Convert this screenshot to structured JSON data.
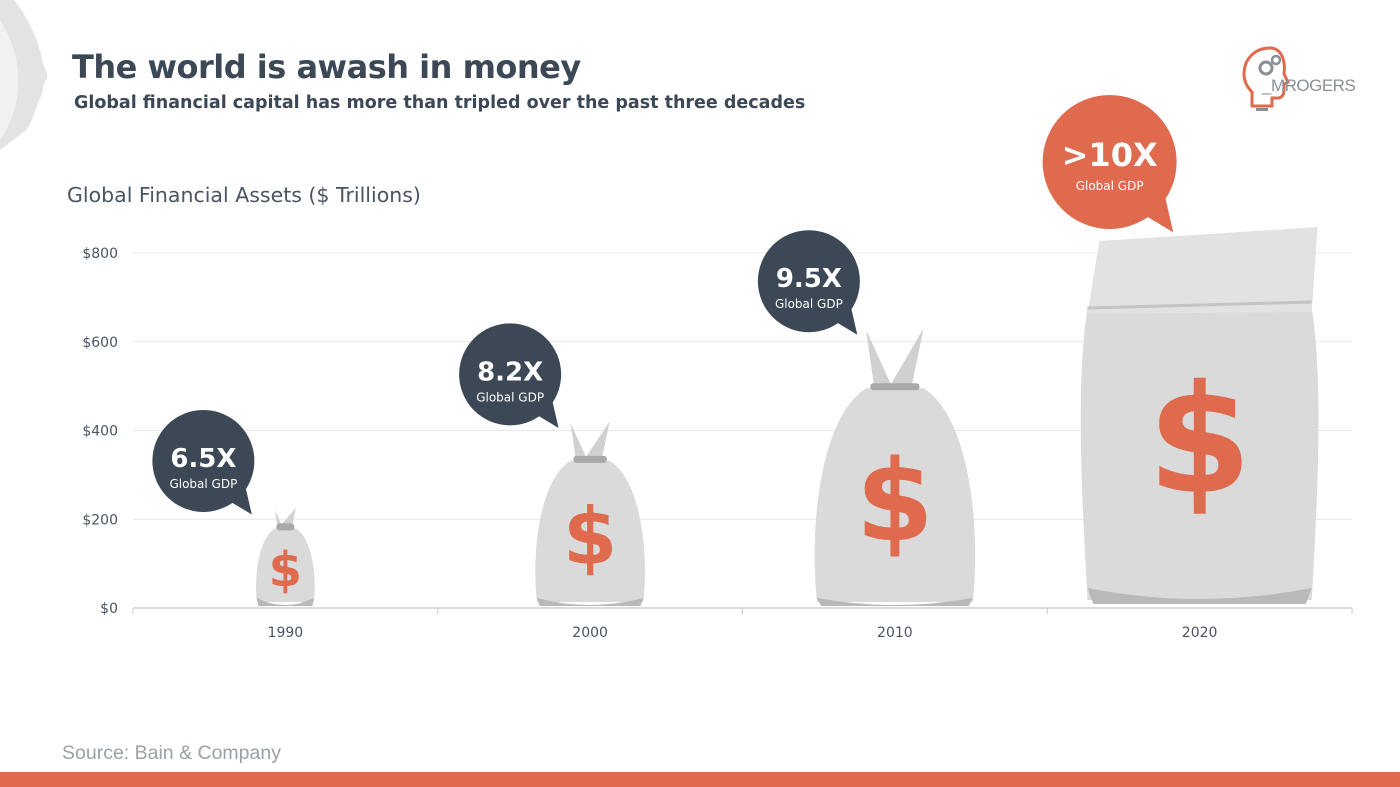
{
  "header": {
    "title": "The world is awash in money",
    "subtitle": "Global financial capital has more than tripled over the past three decades"
  },
  "logo": {
    "text": "_MROGERS",
    "icon": "head-gears-lightbulb-icon"
  },
  "source": "Source: Bain & Company",
  "colors": {
    "accent": "#e06a4e",
    "dark_bubble": "#3d4856",
    "bag": "#dadada",
    "bag_shadow": "#b9b9b9",
    "text": "#3d4856",
    "grid": "#e8e8e8"
  },
  "chart_data": {
    "type": "bar",
    "title": "Global Financial Assets ($ Trillions)",
    "categories": [
      "1990",
      "2000",
      "2010",
      "2020"
    ],
    "values": [
      230,
      425,
      635,
      845
    ],
    "ylim": [
      0,
      800
    ],
    "yticks": [
      0,
      200,
      400,
      600,
      800
    ],
    "ytick_labels": [
      "$0",
      "$200",
      "$400",
      "$600",
      "$800"
    ],
    "grid": true,
    "annotations": [
      {
        "category": "1990",
        "value": "6.5X",
        "label": "Global GDP",
        "color": "#3d4856"
      },
      {
        "category": "2000",
        "value": "8.2X",
        "label": "Global GDP",
        "color": "#3d4856"
      },
      {
        "category": "2010",
        "value": "9.5X",
        "label": "Global GDP",
        "color": "#3d4856"
      },
      {
        "category": "2020",
        "value": ">10X",
        "label": "Global GDP",
        "color": "#e06a4e"
      }
    ]
  }
}
